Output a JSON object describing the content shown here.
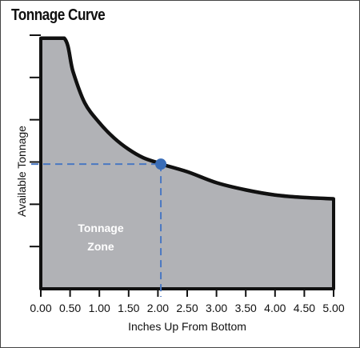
{
  "chart_data": {
    "type": "area",
    "title": "Tonnage Curve",
    "xlabel": "Inches Up From Bottom",
    "ylabel": "Available Tonnage",
    "xlim": [
      0,
      5
    ],
    "ylim": [
      0,
      6
    ],
    "x_ticks": [
      "0.00",
      "0.50",
      "1.00",
      "1.50",
      "2.00",
      "2.50",
      "3.00",
      "3.50",
      "4.00",
      "4.50",
      "5.00"
    ],
    "y_tick_count": 6,
    "grid": false,
    "series": [
      {
        "x": [
          0.0,
          0.4,
          0.55,
          0.75,
          1.0,
          1.25,
          1.5,
          1.75,
          2.0,
          2.05,
          2.5,
          3.0,
          3.5,
          4.0,
          4.5,
          5.0
        ],
        "y": [
          5.93,
          5.93,
          5.14,
          4.4,
          3.93,
          3.57,
          3.3,
          3.1,
          2.98,
          2.95,
          2.77,
          2.51,
          2.34,
          2.22,
          2.16,
          2.13
        ]
      }
    ],
    "highlight_point": {
      "x": 2.05,
      "y": 2.95
    },
    "annotation": {
      "line1": "Tonnage",
      "line2": "Zone"
    },
    "colors": {
      "fill": "#b1b2b6",
      "curve": "#111111",
      "marker": "#3a6db7",
      "guide": "#4a78c2"
    }
  }
}
